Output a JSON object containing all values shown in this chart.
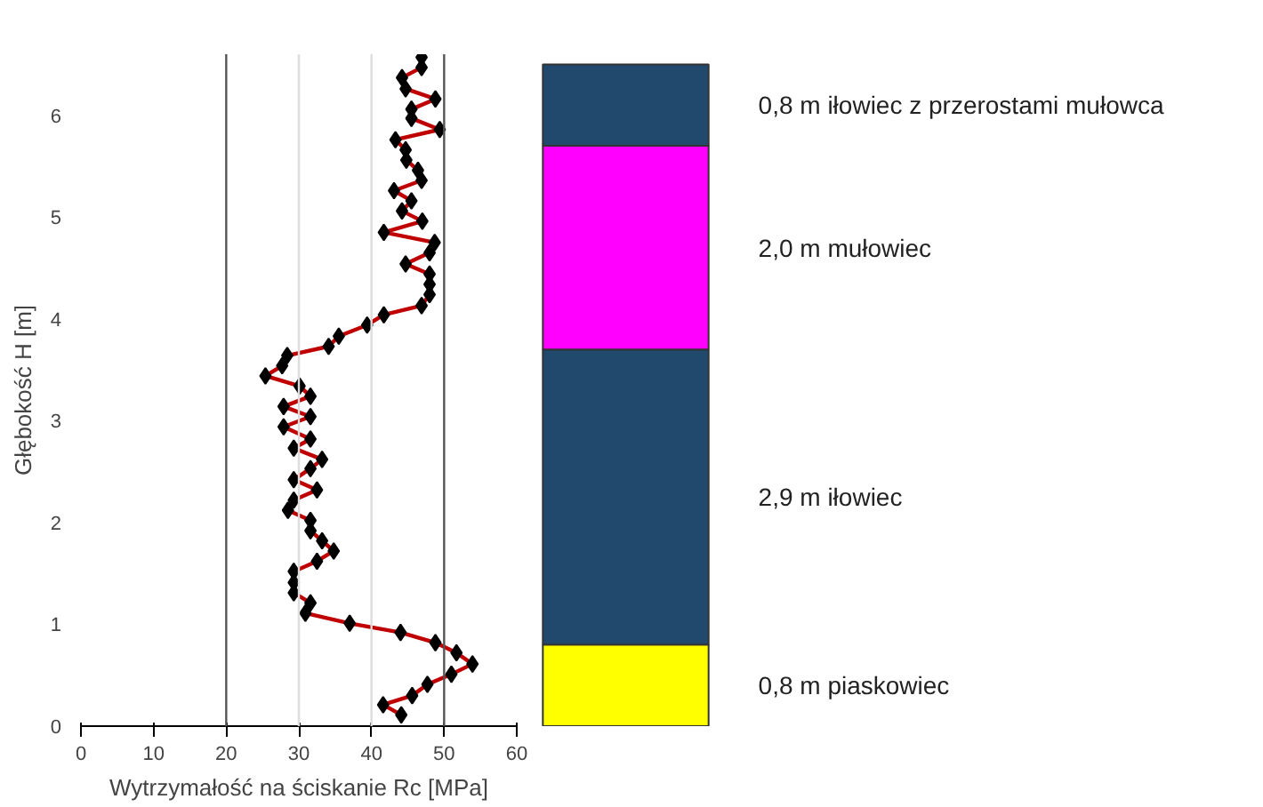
{
  "chart_data": [
    {
      "type": "line",
      "xlabel": "Wytrzymałość na ściskanie Rc [MPa]",
      "ylabel": "Głębokość H [m]",
      "xlim": [
        0,
        60
      ],
      "ylim": [
        0,
        6.6
      ],
      "xticks": [
        0,
        10,
        20,
        30,
        40,
        50,
        60
      ],
      "yticks": [
        0,
        1,
        2,
        3,
        4,
        5,
        6
      ],
      "grid": false,
      "marker": "diamond",
      "line_style": "solid",
      "series": [
        {
          "color": "#c00000",
          "x": [
            44.1,
            41.6,
            45.6,
            47.7,
            51.0,
            53.9,
            51.7,
            48.8,
            44.0,
            37.0,
            30.9,
            31.6,
            29.3,
            29.3,
            29.3,
            32.5,
            34.8,
            33.2,
            31.6,
            31.6,
            28.5,
            29.3,
            32.5,
            29.3,
            31.6,
            33.2,
            29.3,
            31.6,
            27.9,
            31.6,
            27.9,
            31.6,
            30.1,
            25.4,
            27.7,
            28.4,
            34.1,
            35.5,
            39.4,
            41.7,
            46.9,
            48.0,
            48.0,
            48.0,
            44.7,
            48.0,
            48.7,
            41.7,
            47.0,
            44.2,
            45.5,
            43.1,
            46.9,
            46.4,
            44.8,
            44.7,
            43.3,
            49.4,
            45.5,
            45.5,
            48.8,
            44.7,
            44.2,
            46.9,
            46.9
          ],
          "values": [
            0.11,
            0.21,
            0.3,
            0.41,
            0.51,
            0.61,
            0.72,
            0.82,
            0.92,
            1.01,
            1.11,
            1.21,
            1.31,
            1.41,
            1.52,
            1.62,
            1.72,
            1.82,
            1.92,
            2.02,
            2.12,
            2.22,
            2.32,
            2.42,
            2.53,
            2.62,
            2.73,
            2.82,
            2.94,
            3.04,
            3.14,
            3.24,
            3.34,
            3.44,
            3.54,
            3.64,
            3.73,
            3.83,
            3.94,
            4.04,
            4.13,
            4.24,
            4.34,
            4.44,
            4.54,
            4.65,
            4.75,
            4.85,
            4.96,
            5.06,
            5.16,
            5.26,
            5.36,
            5.46,
            5.56,
            5.66,
            5.76,
            5.86,
            5.97,
            6.06,
            6.16,
            6.26,
            6.37,
            6.47,
            6.57
          ]
        }
      ],
      "ref_lines": [
        {
          "axis": "x",
          "value": 20,
          "color": "#555555"
        },
        {
          "axis": "x",
          "value": 30,
          "color": "#dddddd"
        },
        {
          "axis": "x",
          "value": 40,
          "color": "#dddddd"
        },
        {
          "axis": "x",
          "value": 50,
          "color": "#555555"
        }
      ]
    },
    {
      "type": "bar",
      "stacked": true,
      "categories": [
        null
      ],
      "ylim": [
        0,
        6.6
      ],
      "tick_labels": false,
      "series": [
        {
          "name": "0,8 m piaskowiec",
          "color": "#ffff00",
          "values": [
            0.8
          ]
        },
        {
          "name": "2,9 m iłowiec",
          "color": "#21496e",
          "values": [
            2.9
          ]
        },
        {
          "name": "2,0 m mułowiec",
          "color": "#ff00ff",
          "values": [
            2.0
          ]
        },
        {
          "name": "0,8 m iłowiec z przerostami mułowca",
          "color": "#21496e",
          "values": [
            0.8
          ]
        }
      ]
    }
  ]
}
